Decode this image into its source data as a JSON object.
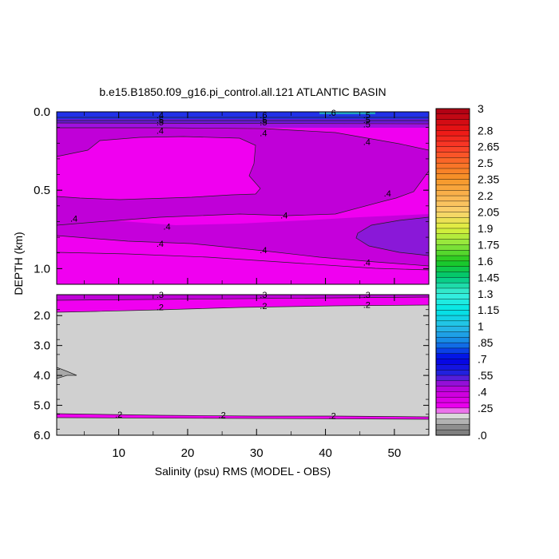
{
  "chart_data": {
    "type": "contour",
    "title": "b.e15.B1850.f09_g16.pi_control.all.121 ATLANTIC BASIN",
    "xlabel": "Salinity (psu) RMS (MODEL - OBS)",
    "ylabel": "DEPTH (km)",
    "xlim": [
      1,
      55
    ],
    "x_ticks": [
      "10",
      "20",
      "30",
      "40",
      "50"
    ],
    "panels": [
      {
        "name": "upper",
        "ylim": [
          0.0,
          1.1
        ],
        "y_ticks": [
          "0.0",
          "0.5",
          "1.0"
        ],
        "y_tick_values": [
          0.0,
          0.5,
          1.0
        ],
        "contour_labels": [
          {
            "x": 16,
            "y": 0.02,
            "text": ".4"
          },
          {
            "x": 31,
            "y": 0.02,
            "text": ".6"
          },
          {
            "x": 46,
            "y": 0.02,
            "text": ".5"
          },
          {
            "x": 41,
            "y": 0.005,
            "text": ".6"
          },
          {
            "x": 16,
            "y": 0.05,
            "text": ".5"
          },
          {
            "x": 31,
            "y": 0.05,
            "text": ".5"
          },
          {
            "x": 46,
            "y": 0.05,
            "text": ".5"
          },
          {
            "x": 16,
            "y": 0.065,
            "text": ".5"
          },
          {
            "x": 31,
            "y": 0.065,
            "text": ".5"
          },
          {
            "x": 46,
            "y": 0.08,
            "text": ".5"
          },
          {
            "x": 16,
            "y": 0.12,
            "text": ".4"
          },
          {
            "x": 31,
            "y": 0.135,
            "text": ".4"
          },
          {
            "x": 46,
            "y": 0.19,
            "text": ".4"
          },
          {
            "x": 49,
            "y": 0.52,
            "text": ".4"
          },
          {
            "x": 3.5,
            "y": 0.68,
            "text": ".4"
          },
          {
            "x": 17,
            "y": 0.73,
            "text": ".4"
          },
          {
            "x": 34,
            "y": 0.66,
            "text": ".4"
          },
          {
            "x": 16,
            "y": 0.84,
            "text": ".4"
          },
          {
            "x": 31,
            "y": 0.88,
            "text": ".4"
          },
          {
            "x": 46,
            "y": 0.96,
            "text": ".4"
          }
        ]
      },
      {
        "name": "lower",
        "ylim": [
          1.3,
          6.0
        ],
        "y_ticks": [
          "2.0",
          "3.0",
          "4.0",
          "5.0",
          "6.0"
        ],
        "y_tick_values": [
          2.0,
          3.0,
          4.0,
          5.0,
          6.0
        ],
        "contour_labels": [
          {
            "x": 16,
            "y": 1.3,
            "text": ".3"
          },
          {
            "x": 31,
            "y": 1.3,
            "text": ".3"
          },
          {
            "x": 46,
            "y": 1.3,
            "text": ".3"
          },
          {
            "x": 16,
            "y": 1.72,
            "text": ".2"
          },
          {
            "x": 31,
            "y": 1.67,
            "text": ".2"
          },
          {
            "x": 46,
            "y": 1.63,
            "text": ".2"
          },
          {
            "x": 10,
            "y": 5.3,
            "text": ".2"
          },
          {
            "x": 25,
            "y": 5.32,
            "text": ".2"
          },
          {
            "x": 41,
            "y": 5.34,
            "text": ".2"
          }
        ]
      }
    ],
    "colorbar": {
      "min": 0,
      "max": 3,
      "step": 0.05,
      "labels": [
        "3",
        "2.8",
        "2.65",
        "2.5",
        "2.35",
        "2.2",
        "2.05",
        "1.9",
        "1.75",
        "1.6",
        "1.45",
        "1.3",
        "1.15",
        "1",
        ".85",
        ".7",
        ".55",
        ".4",
        ".25",
        ".0"
      ],
      "label_values": [
        3.0,
        2.8,
        2.65,
        2.5,
        2.35,
        2.2,
        2.05,
        1.9,
        1.75,
        1.6,
        1.45,
        1.3,
        1.15,
        1.0,
        0.85,
        0.7,
        0.55,
        0.4,
        0.25,
        0.0
      ]
    },
    "colors": {
      "magenta": "#f000f0",
      "purple": "#c000d8",
      "violet": "#8a18d8",
      "blue": "#2040f0",
      "gray": "#d0d0d0",
      "dark_gray": "#a8a8a8"
    }
  }
}
